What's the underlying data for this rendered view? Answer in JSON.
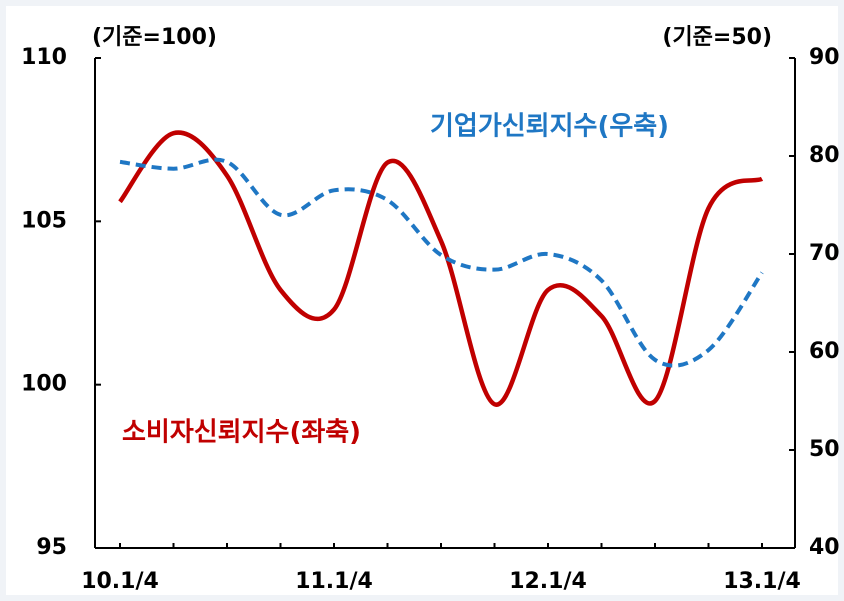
{
  "chart_data": {
    "type": "line",
    "annotations": [
      "(기준=100)",
      "(기준=50)"
    ],
    "categories": [
      "10.1/4",
      null,
      null,
      null,
      "11.1/4",
      null,
      null,
      null,
      "12.1/4",
      null,
      null,
      null,
      "13.1/4"
    ],
    "series": [
      {
        "name": "소비자신뢰지수(좌축)",
        "color": "#c00000",
        "axis": "y",
        "values": [
          105.6,
          107.7,
          106.4,
          102.9,
          102.3,
          106.8,
          104.4,
          99.4,
          102.9,
          102.1,
          99.5,
          105.4,
          106.3
        ]
      },
      {
        "name": "기업가신뢰지수(우축)",
        "color": "#1f77c4",
        "axis": "y2",
        "values": [
          79.4,
          78.7,
          79.4,
          74.0,
          76.5,
          75.5,
          69.9,
          68.4,
          70.0,
          67.3,
          59.2,
          60.2,
          68.1
        ]
      }
    ],
    "ylim": [
      95,
      110
    ],
    "yticks": [
      95,
      100,
      105,
      110
    ],
    "y2lim": [
      40,
      90
    ],
    "y2ticks": [
      40,
      50,
      60,
      70,
      80,
      90
    ]
  }
}
